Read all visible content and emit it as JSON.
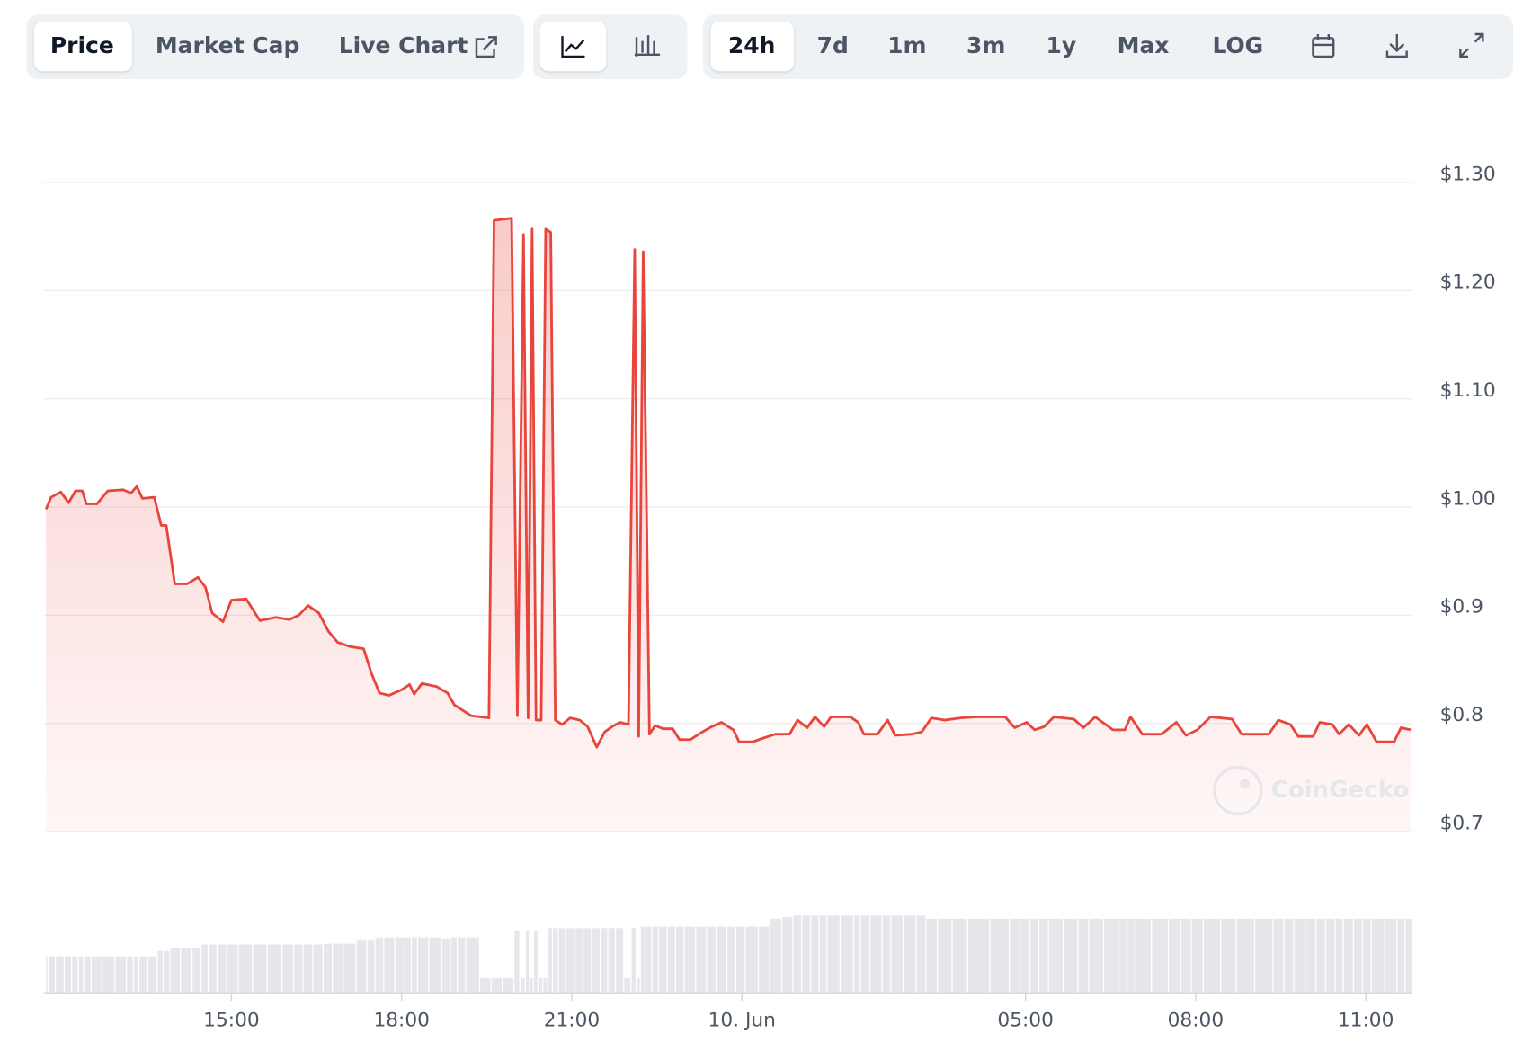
{
  "toolbar": {
    "tabs": [
      "Price",
      "Market Cap",
      "Live Chart"
    ],
    "ranges": [
      "24h",
      "7d",
      "1m",
      "3m",
      "1y",
      "Max",
      "LOG"
    ]
  },
  "chart_data": {
    "type": "line",
    "x": [
      11.73,
      11.82,
      11.99,
      12.13,
      12.25,
      12.37,
      12.44,
      12.63,
      12.82,
      13.09,
      13.23,
      13.33,
      13.43,
      13.64,
      13.76,
      13.85,
      14.0,
      14.22,
      14.41,
      14.54,
      14.66,
      14.85,
      15.0,
      15.26,
      15.5,
      15.78,
      16.02,
      16.19,
      16.35,
      16.54,
      16.71,
      16.87,
      17.09,
      17.33,
      17.47,
      17.61,
      17.78,
      18.0,
      18.14,
      18.22,
      18.36,
      18.62,
      18.81,
      18.93,
      19.05,
      19.23,
      19.54,
      19.63,
      19.94,
      20.04,
      20.15,
      20.23,
      20.3,
      20.37,
      20.46,
      20.54,
      20.63,
      20.71,
      20.83,
      20.97,
      21.14,
      21.28,
      21.44,
      21.58,
      21.71,
      21.85,
      22.0,
      22.11,
      22.18,
      22.26,
      22.37,
      22.47,
      22.61,
      22.78,
      22.9,
      23.09,
      23.3,
      23.47,
      23.64,
      23.85,
      23.95,
      24.19,
      24.41,
      24.59,
      24.84,
      24.98,
      25.15,
      25.29,
      25.45,
      25.57,
      25.91,
      26.05,
      26.15,
      26.39,
      26.57,
      26.7,
      27.0,
      27.17,
      27.34,
      27.57,
      27.86,
      28.12,
      28.64,
      28.81,
      29.02,
      29.16,
      29.33,
      29.5,
      29.85,
      30.02,
      30.23,
      30.54,
      30.75,
      30.85,
      31.06,
      31.4,
      31.66,
      31.83,
      32.03,
      32.26,
      32.64,
      32.81,
      33.29,
      33.46,
      33.67,
      33.81,
      34.07,
      34.19,
      34.41,
      34.53,
      34.7,
      34.88,
      35.02,
      35.19,
      35.5,
      35.62,
      35.79
    ],
    "series": [
      {
        "color": "#e8453c",
        "values": [
          0.998,
          1.009,
          1.014,
          1.004,
          1.015,
          1.015,
          1.003,
          1.003,
          1.015,
          1.016,
          1.013,
          1.019,
          1.008,
          1.009,
          0.983,
          0.983,
          0.929,
          0.929,
          0.935,
          0.926,
          0.902,
          0.894,
          0.914,
          0.915,
          0.895,
          0.898,
          0.896,
          0.9,
          0.909,
          0.902,
          0.885,
          0.875,
          0.871,
          0.869,
          0.846,
          0.828,
          0.826,
          0.831,
          0.836,
          0.827,
          0.837,
          0.834,
          0.828,
          0.817,
          0.813,
          0.807,
          0.805,
          1.265,
          1.267,
          0.807,
          1.252,
          0.805,
          1.257,
          0.803,
          0.803,
          1.257,
          1.254,
          0.803,
          0.799,
          0.805,
          0.803,
          0.797,
          0.778,
          0.792,
          0.797,
          0.801,
          0.799,
          1.238,
          0.788,
          1.236,
          0.79,
          0.798,
          0.795,
          0.795,
          0.785,
          0.785,
          0.792,
          0.797,
          0.801,
          0.794,
          0.783,
          0.783,
          0.787,
          0.79,
          0.79,
          0.803,
          0.796,
          0.806,
          0.797,
          0.806,
          0.806,
          0.801,
          0.79,
          0.79,
          0.803,
          0.789,
          0.79,
          0.792,
          0.805,
          0.803,
          0.805,
          0.806,
          0.806,
          0.796,
          0.801,
          0.794,
          0.797,
          0.806,
          0.804,
          0.796,
          0.806,
          0.794,
          0.794,
          0.806,
          0.79,
          0.79,
          0.801,
          0.789,
          0.794,
          0.806,
          0.804,
          0.79,
          0.79,
          0.803,
          0.799,
          0.788,
          0.788,
          0.801,
          0.799,
          0.79,
          0.799,
          0.789,
          0.799,
          0.783,
          0.783,
          0.796,
          0.794
        ]
      }
    ],
    "volume": [
      48,
      48,
      48,
      48,
      48,
      48,
      48,
      48,
      48,
      48,
      48,
      48,
      48,
      48,
      55,
      55,
      58,
      58,
      58,
      63,
      63,
      63,
      63,
      63,
      63,
      63,
      63,
      63,
      63,
      63,
      64,
      64,
      64,
      68,
      68,
      72,
      72,
      72,
      72,
      72,
      72,
      72,
      70,
      72,
      72,
      72,
      20,
      20,
      20,
      80,
      20,
      80,
      20,
      80,
      20,
      20,
      84,
      84,
      84,
      84,
      84,
      84,
      84,
      84,
      84,
      84,
      20,
      84,
      20,
      86,
      86,
      86,
      86,
      86,
      86,
      86,
      86,
      86,
      86,
      86,
      86,
      86,
      86,
      96,
      98,
      100,
      100,
      100,
      100,
      100,
      100,
      100,
      100,
      100,
      100,
      100,
      100,
      100,
      96,
      96,
      96,
      96,
      96,
      96,
      96,
      96,
      96,
      96,
      96,
      96,
      96,
      96,
      96,
      96,
      96,
      96,
      96,
      96,
      96,
      96,
      96,
      96,
      96,
      96,
      96,
      96,
      96,
      96,
      96,
      96,
      96,
      96,
      96,
      96,
      96,
      96,
      96
    ],
    "xlim": [
      11.73,
      35.79
    ],
    "xticks": [
      {
        "value": 15,
        "label": "15:00"
      },
      {
        "value": 18,
        "label": "18:00"
      },
      {
        "value": 21,
        "label": "21:00"
      },
      {
        "value": 24,
        "label": "10. Jun"
      },
      {
        "value": 29,
        "label": "05:00"
      },
      {
        "value": 32,
        "label": "08:00"
      },
      {
        "value": 35,
        "label": "11:00"
      }
    ],
    "ylim": [
      0.7,
      1.3
    ],
    "yticks": [
      {
        "value": 0.7,
        "label": "$0.7"
      },
      {
        "value": 0.8,
        "label": "$0.8"
      },
      {
        "value": 0.9,
        "label": "$0.9"
      },
      {
        "value": 1.0,
        "label": "$1.00"
      },
      {
        "value": 1.1,
        "label": "$1.10"
      },
      {
        "value": 1.2,
        "label": "$1.20"
      },
      {
        "value": 1.3,
        "label": "$1.30"
      }
    ],
    "grid": true,
    "watermark": "CoinGecko"
  }
}
